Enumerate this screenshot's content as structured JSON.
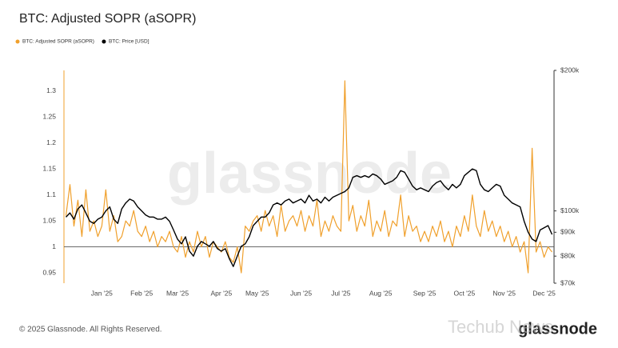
{
  "chart_data": {
    "type": "line",
    "title": "BTC: Adjusted SOPR (aSOPR)",
    "footer": "© 2025 Glassnode. All Rights Reserved.",
    "watermark": "glassnode",
    "logo": "glassnode",
    "overlay_watermark": "Techub News",
    "categories": [
      null,
      null,
      null,
      null,
      null,
      null,
      null,
      null,
      null,
      "Jan '25",
      null,
      null,
      null,
      null,
      null,
      null,
      null,
      null,
      null,
      "Feb '25",
      null,
      null,
      null,
      null,
      null,
      null,
      null,
      null,
      "Mar '25",
      null,
      null,
      null,
      null,
      null,
      null,
      null,
      null,
      null,
      null,
      "Apr '25",
      null,
      null,
      null,
      null,
      null,
      null,
      null,
      null,
      "May '25",
      null,
      null,
      null,
      null,
      null,
      null,
      null,
      null,
      null,
      null,
      "Jun '25",
      null,
      null,
      null,
      null,
      null,
      null,
      null,
      null,
      null,
      "Jul '25",
      null,
      null,
      null,
      null,
      null,
      null,
      null,
      null,
      null,
      "Aug '25",
      null,
      null,
      null,
      null,
      null,
      null,
      null,
      null,
      null,
      null,
      "Sep '25",
      null,
      null,
      null,
      null,
      null,
      null,
      null,
      null,
      null,
      "Oct '25",
      null,
      null,
      null,
      null,
      null,
      null,
      null,
      null,
      null,
      "Nov '25",
      null,
      null,
      null,
      null,
      null,
      null,
      null,
      null,
      null,
      "Dec '25",
      null,
      null
    ],
    "series": [
      {
        "name": "BTC: Adjusted SOPR (aSOPR)",
        "color": "#f0a02c",
        "values": [
          1.06,
          1.12,
          1.04,
          1.09,
          1.02,
          1.11,
          1.03,
          1.05,
          1.02,
          1.04,
          1.11,
          1.03,
          1.06,
          1.01,
          1.02,
          1.05,
          1.04,
          1.07,
          1.03,
          1.02,
          1.04,
          1.01,
          1.03,
          1.0,
          1.02,
          1.01,
          1.03,
          1.0,
          0.99,
          1.02,
          0.98,
          1.01,
          0.99,
          1.03,
          1.0,
          1.02,
          0.98,
          1.01,
          1.0,
          0.99,
          1.01,
          0.98,
          0.97,
          1.0,
          0.95,
          1.04,
          1.03,
          1.05,
          1.06,
          1.03,
          1.07,
          1.04,
          1.06,
          1.02,
          1.08,
          1.03,
          1.05,
          1.06,
          1.04,
          1.07,
          1.03,
          1.06,
          1.04,
          1.09,
          1.02,
          1.05,
          1.03,
          1.06,
          1.04,
          1.03,
          1.32,
          1.05,
          1.08,
          1.03,
          1.06,
          1.04,
          1.09,
          1.02,
          1.05,
          1.03,
          1.07,
          1.02,
          1.05,
          1.04,
          1.1,
          1.02,
          1.06,
          1.03,
          1.04,
          1.01,
          1.03,
          1.01,
          1.04,
          1.02,
          1.05,
          1.01,
          1.03,
          1.0,
          1.04,
          1.02,
          1.06,
          1.03,
          1.1,
          1.04,
          1.02,
          1.07,
          1.03,
          1.05,
          1.02,
          1.04,
          1.01,
          1.03,
          1.0,
          1.02,
          0.99,
          1.01,
          0.95,
          1.19,
          0.99,
          1.01,
          0.98,
          1.0,
          0.99
        ]
      },
      {
        "name": "BTC: Price [USD]",
        "color": "#000000",
        "axis": "y2",
        "values": [
          97000,
          99000,
          96000,
          101000,
          103000,
          99000,
          95000,
          94000,
          96000,
          97000,
          100000,
          102000,
          96000,
          94000,
          101000,
          104000,
          106000,
          105000,
          102000,
          100000,
          98000,
          97000,
          97000,
          96000,
          96000,
          97000,
          95000,
          91000,
          87000,
          85000,
          88000,
          82000,
          80000,
          84000,
          86000,
          85000,
          84000,
          86000,
          83000,
          82000,
          83000,
          79000,
          76000,
          80000,
          84000,
          85000,
          88000,
          93000,
          95000,
          97000,
          97000,
          99000,
          103000,
          104000,
          103000,
          105000,
          106000,
          104000,
          105000,
          106000,
          104000,
          108000,
          105000,
          106000,
          104000,
          107000,
          105000,
          107000,
          108000,
          109000,
          110000,
          112000,
          118000,
          119000,
          118000,
          119000,
          118000,
          120000,
          119000,
          117000,
          114000,
          115000,
          116000,
          118000,
          122000,
          121000,
          117000,
          113000,
          111000,
          112000,
          111000,
          110000,
          113000,
          115000,
          116000,
          113000,
          111000,
          114000,
          112000,
          114000,
          119000,
          121000,
          123000,
          122000,
          114000,
          111000,
          110000,
          112000,
          114000,
          113000,
          108000,
          106000,
          104000,
          103000,
          102000,
          95000,
          90000,
          87000,
          86000,
          91000,
          92000,
          93000,
          89000
        ]
      }
    ],
    "ylim": [
      0.93,
      1.34
    ],
    "yticks": [
      0.95,
      1,
      1.05,
      1.1,
      1.15,
      1.2,
      1.25,
      1.3
    ],
    "y2lim": [
      70000,
      200000
    ],
    "y2log": true,
    "y2ticks": [
      {
        "value": 70000,
        "label": "$70k"
      },
      {
        "value": 80000,
        "label": "$80k"
      },
      {
        "value": 90000,
        "label": "$90k"
      },
      {
        "value": 100000,
        "label": "$100k"
      },
      {
        "value": 200000,
        "label": "$200k"
      }
    ],
    "baseline": 1,
    "grid": false,
    "legend": "top-left"
  }
}
